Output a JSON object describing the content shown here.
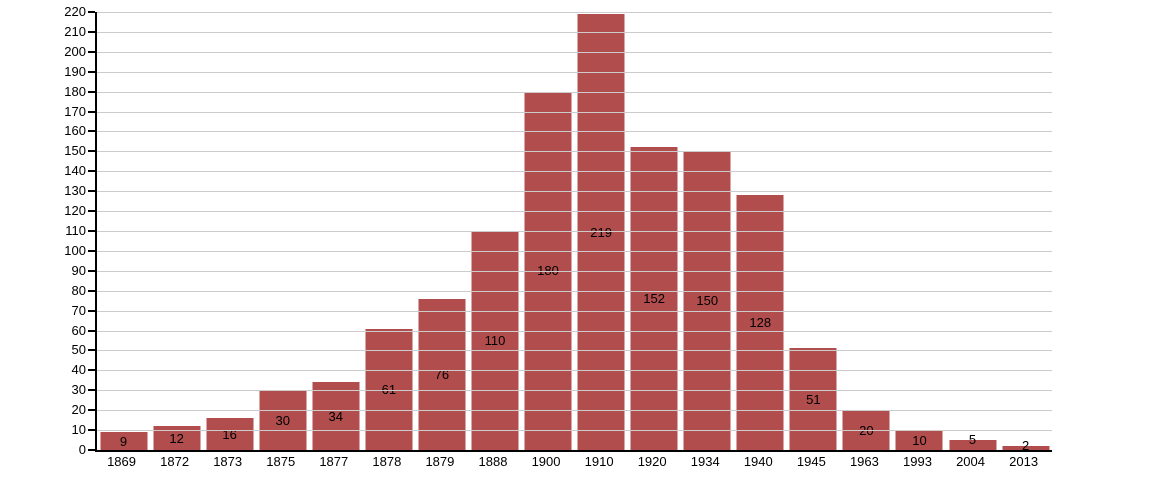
{
  "chart_data": {
    "type": "bar",
    "title": "",
    "xlabel": "",
    "ylabel": "",
    "categories": [
      "1869",
      "1872",
      "1873",
      "1875",
      "1877",
      "1878",
      "1879",
      "1888",
      "1900",
      "1910",
      "1920",
      "1934",
      "1940",
      "1945",
      "1963",
      "1993",
      "2004",
      "2013"
    ],
    "values": [
      9,
      12,
      16,
      30,
      34,
      61,
      76,
      110,
      180,
      219,
      152,
      150,
      128,
      51,
      20,
      10,
      5,
      2
    ],
    "ylim": [
      0,
      220
    ],
    "ytick_step": 10,
    "grid": true,
    "legend_position": "none",
    "bar_color": "#b14d4d",
    "gridline_color": "#cccccc",
    "axis_color": "#000000",
    "text_color": "#000000",
    "background_color": "#ffffff"
  }
}
